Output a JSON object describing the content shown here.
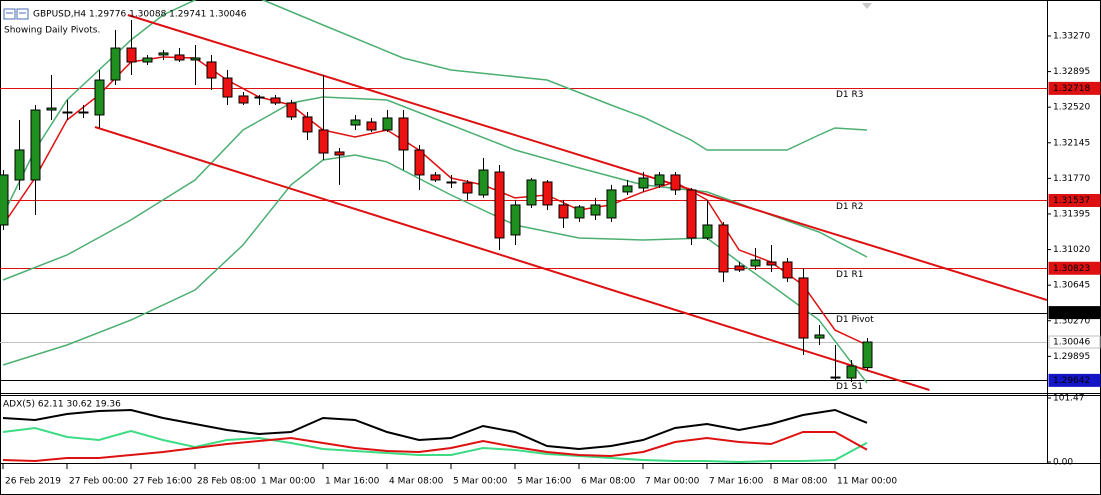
{
  "chart_data": [
    {
      "type": "candlestick",
      "title": "GBPUSD,H4  1.29776 1.30088 1.29741 1.30046",
      "subtitle": "Showing Daily Pivots.",
      "categories": [
        "26 Feb 2019",
        null,
        null,
        null,
        "27 Feb 00:00",
        null,
        null,
        null,
        "27 Feb 16:00",
        null,
        null,
        null,
        "28 Feb 08:00",
        null,
        null,
        null,
        "1 Mar 00:00",
        null,
        null,
        null,
        "1 Mar 16:00",
        null,
        null,
        null,
        "4 Mar 08:00",
        null,
        null,
        null,
        "5 Mar 00:00",
        null,
        null,
        null,
        "5 Mar 16:00",
        null,
        null,
        null,
        "6 Mar 08:00",
        null,
        null,
        null,
        "7 Mar 00:00",
        null,
        null,
        null,
        "7 Mar 16:00",
        null,
        null,
        null,
        "8 Mar 08:00",
        null,
        null,
        null,
        "11 Mar 00:00",
        null,
        null
      ],
      "open": [
        1.31279,
        1.31753,
        1.31753,
        1.3249,
        1.32469,
        1.32459,
        1.32438,
        1.32806,
        1.33143,
        1.32996,
        1.3307,
        1.3307,
        1.33017,
        1.32996,
        1.32827,
        1.32638,
        1.32617,
        1.32617,
        1.32564,
        1.32417,
        1.3228,
        1.32048,
        1.32332,
        1.32364,
        1.3228,
        1.32406,
        1.32069,
        1.31806,
        1.31732,
        1.31722,
        1.31595,
        1.31837,
        1.31174,
        1.3149,
        1.31732,
        1.3149,
        1.31353,
        1.31384,
        1.31353,
        1.31627,
        1.31669,
        1.31701,
        1.31806,
        1.31648,
        1.31142,
        1.31279,
        1.30847,
        1.30847,
        1.30889,
        1.30889,
        1.30721,
        1.30088,
        1.29677,
        1.29667,
        1.29776
      ],
      "high": [
        1.31858,
        1.32385,
        1.32543,
        1.32859,
        1.32596,
        1.32543,
        1.32912,
        1.33333,
        1.33438,
        1.3307,
        1.33122,
        1.33143,
        1.33175,
        1.3307,
        1.32912,
        1.3268,
        1.32648,
        1.32648,
        1.32596,
        1.32469,
        1.32859,
        1.3209,
        1.32438,
        1.32406,
        1.3249,
        1.3249,
        1.32122,
        1.31837,
        1.31806,
        1.31753,
        1.31985,
        1.31911,
        1.31543,
        1.31774,
        1.31753,
        1.31543,
        1.3149,
        1.31564,
        1.31701,
        1.31753,
        1.31837,
        1.31837,
        1.31837,
        1.31669,
        1.31543,
        1.31311,
        1.30889,
        1.31037,
        1.31068,
        1.30931,
        1.30826,
        1.30225,
        1.30015,
        1.29856,
        1.30088
      ],
      "low": [
        1.31226,
        1.31648,
        1.31384,
        1.32385,
        1.32385,
        1.32406,
        1.32301,
        1.32754,
        1.32859,
        1.32964,
        1.33017,
        1.32996,
        1.32754,
        1.32701,
        1.32543,
        1.32543,
        1.32543,
        1.32543,
        1.32385,
        1.32174,
        1.31964,
        1.31701,
        1.3228,
        1.32259,
        1.32259,
        1.31858,
        1.31648,
        1.31732,
        1.31669,
        1.31543,
        1.31564,
        1.31016,
        1.31068,
        1.31458,
        1.31437,
        1.31247,
        1.31311,
        1.31332,
        1.31311,
        1.31595,
        1.31627,
        1.31669,
        1.31595,
        1.31068,
        1.31121,
        1.30678,
        1.30784,
        1.30805,
        1.30784,
        1.30678,
        1.29909,
        1.30015,
        1.29646,
        1.29625,
        1.29741
      ],
      "close": [
        1.31806,
        1.32069,
        1.3249,
        1.32511,
        1.32459,
        1.32469,
        1.32806,
        1.33143,
        1.32996,
        1.33038,
        1.33091,
        1.33017,
        1.33038,
        1.32827,
        1.32627,
        1.32564,
        1.32627,
        1.32564,
        1.32417,
        1.32259,
        1.32037,
        1.32016,
        1.32385,
        1.3228,
        1.32406,
        1.32069,
        1.31806,
        1.31753,
        1.31722,
        1.31616,
        1.31858,
        1.31142,
        1.3149,
        1.31753,
        1.3149,
        1.31353,
        1.31469,
        1.3149,
        1.31648,
        1.3169,
        1.31774,
        1.31806,
        1.31648,
        1.31142,
        1.31279,
        1.30784,
        1.30805,
        1.3091,
        1.30857,
        1.30721,
        1.30088,
        1.3012,
        1.29667,
        1.29793,
        1.30046
      ],
      "up_color": "#1f8f1f",
      "down_color": "#ee1111",
      "ylim": [
        1.29509,
        1.33649
      ],
      "yticks": [
        {
          "value": 1.3327,
          "label": "1.33270"
        },
        1.32895,
        {
          "value": 1.3252,
          "label": "1.32520"
        },
        1.32145,
        {
          "value": 1.3177,
          "label": "1.31770"
        },
        1.31395,
        {
          "value": 1.3102,
          "label": "1.31020"
        },
        1.30645,
        {
          "value": 1.3027,
          "label": "1.30270"
        },
        1.29895
      ],
      "overlays": [
        {
          "color": "#4caf72",
          "width": 1.5,
          "x": [
            0,
            2,
            4,
            6,
            8,
            10,
            14,
            17,
            20,
            25,
            28,
            31,
            34,
            38,
            40,
            43,
            44,
            49,
            51,
            52,
            54
          ],
          "values": [
            1.31384,
            1.32069,
            1.32596,
            1.32912,
            1.33228,
            1.33491,
            1.33807,
            1.33596,
            1.33386,
            1.33038,
            1.32912,
            1.32859,
            1.32806,
            1.32543,
            1.32417,
            1.32174,
            1.32069,
            1.32069,
            1.32227,
            1.32301,
            1.3228
          ]
        },
        {
          "color": "#4caf72",
          "width": 1.5,
          "x": [
            0,
            4,
            8,
            12,
            15,
            18,
            20,
            24,
            28,
            32,
            36,
            40,
            44,
            48,
            51,
            54
          ],
          "values": [
            1.30699,
            1.30963,
            1.31332,
            1.31753,
            1.3228,
            1.32564,
            1.32627,
            1.32596,
            1.32332,
            1.32069,
            1.3188,
            1.31701,
            1.31627,
            1.31384,
            1.31205,
            1.30942
          ]
        },
        {
          "color": "#4caf72",
          "width": 1.5,
          "x": [
            0,
            4,
            8,
            12,
            15,
            18,
            20,
            22,
            24,
            28,
            32,
            36,
            40,
            44,
            46,
            48,
            51,
            54
          ],
          "values": [
            1.29804,
            1.30015,
            1.30278,
            1.30594,
            1.31068,
            1.31701,
            1.31964,
            1.32016,
            1.31943,
            1.31595,
            1.31279,
            1.31142,
            1.31121,
            1.31142,
            1.30889,
            1.30647,
            1.30278,
            1.29614
          ]
        },
        {
          "color": "#e01010",
          "width": 1.5,
          "x": [
            0,
            2,
            4,
            6,
            8,
            10,
            12,
            14,
            16,
            18,
            20,
            22,
            24,
            26,
            28,
            30,
            32,
            34,
            36,
            38,
            40,
            42,
            44,
            46,
            48,
            50,
            52,
            54
          ],
          "values": [
            1.31279,
            1.31774,
            1.32385,
            1.32648,
            1.32996,
            1.33049,
            1.33038,
            1.32806,
            1.32627,
            1.32543,
            1.3228,
            1.32206,
            1.3228,
            1.32069,
            1.31774,
            1.31701,
            1.31564,
            1.31595,
            1.31437,
            1.3149,
            1.31627,
            1.31732,
            1.31543,
            1.31016,
            1.30889,
            1.30647,
            1.30172,
            1.30015
          ]
        },
        {
          "color": "#dd1111",
          "width": 2,
          "x": [
            7.8,
            65.25
          ],
          "values": [
            1.33491,
            1.30489
          ]
        },
        {
          "color": "#dd1111",
          "width": 2,
          "x": [
            5.75,
            57.9
          ],
          "values": [
            1.32311,
            1.29541
          ]
        }
      ],
      "levels": [
        {
          "name": "D1 R3",
          "value": 1.32718,
          "color": "#dd1111",
          "box_color": "#dd1111"
        },
        {
          "name": "D1 R2",
          "value": 1.31537,
          "color": "#dd1111",
          "box_color": "#dd1111"
        },
        {
          "name": "D1 R1",
          "value": 1.30823,
          "color": "#dd1111",
          "box_color": "#dd1111"
        },
        {
          "name": "D1 Pivot",
          "value": 1.30356,
          "color": "#000000",
          "box_color": "#000000"
        },
        {
          "value": 1.30046,
          "color": "#c0c0c0",
          "box_color": "#ffffff"
        },
        {
          "name": "D1 S1",
          "value": 1.29642,
          "color": "#000000",
          "box_color": "#1515c8"
        }
      ]
    },
    {
      "type": "line",
      "title": "ADX(5) 62.11 30.62 19.36",
      "x": [
        0,
        2,
        4,
        6,
        8,
        10,
        12,
        14,
        16,
        18,
        20,
        22,
        24,
        26,
        28,
        30,
        32,
        34,
        36,
        38,
        40,
        42,
        44,
        46,
        48,
        50,
        52,
        54
      ],
      "series": [
        {
          "color": "#000000",
          "values": [
            69.8,
            66.6,
            76.1,
            80.9,
            82.4,
            69.8,
            60.2,
            50.7,
            44.4,
            47.6,
            69.8,
            66.6,
            47.6,
            34.9,
            38.1,
            57.1,
            47.6,
            25.4,
            20.6,
            25.4,
            34.9,
            53.9,
            60.2,
            50.7,
            60.2,
            74.5,
            82.4,
            62.11
          ]
        },
        {
          "color": "#3ddc84",
          "values": [
            47.6,
            53.9,
            39.6,
            34.9,
            49.2,
            34.9,
            23.8,
            34.9,
            38.1,
            30.1,
            20.6,
            17.4,
            14.3,
            11.1,
            11.1,
            22.2,
            19,
            12.7,
            9.5,
            6.3,
            3.2,
            1.6,
            1.6,
            0,
            1.6,
            1.6,
            3.2,
            30.62
          ]
        },
        {
          "color": "#dd1111",
          "values": [
            3.2,
            1.6,
            6.3,
            6.3,
            11.1,
            15.9,
            22.2,
            28.5,
            33.3,
            38.1,
            30.1,
            22.2,
            17.4,
            15.9,
            22.2,
            33.3,
            23.8,
            15.9,
            11.1,
            9.5,
            15.9,
            31.7,
            38.1,
            31.7,
            28.5,
            47.6,
            47.6,
            19.36
          ]
        }
      ],
      "ylim": [
        0,
        101.47
      ],
      "yticks": [
        101.47,
        {
          "value": 0,
          "label": "0.00"
        }
      ]
    }
  ]
}
